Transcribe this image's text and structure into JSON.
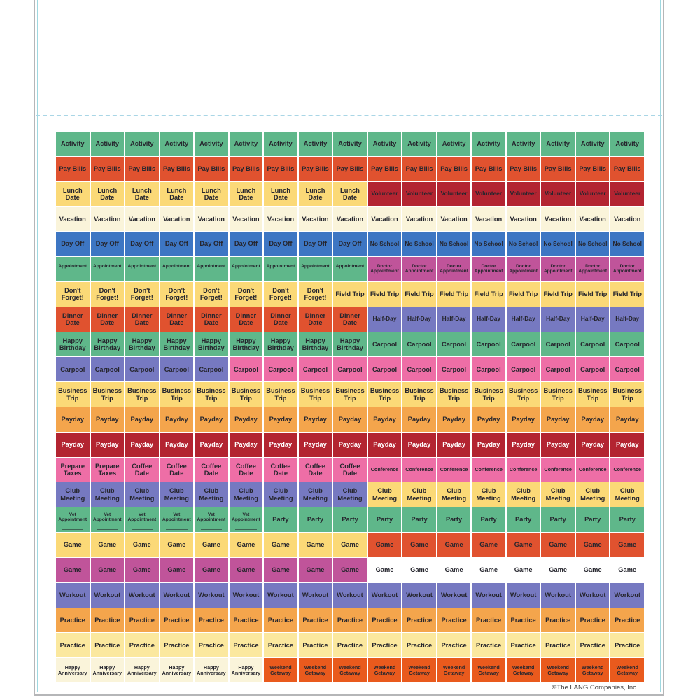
{
  "footer": {
    "copyright": "©The LANG Companies, Inc."
  },
  "palette": {
    "green": "#5fb78a",
    "red_orange": "#e0522f",
    "deep_orange": "#e95a1d",
    "yellow": "#fbd977",
    "pale_yellow": "#fbe89e",
    "cream": "#faf4da",
    "blue": "#3d76c3",
    "dark_red": "#b32431",
    "magenta": "#c0549a",
    "purple": "#7679c1",
    "pink": "#ee6ea6",
    "orange": "#f4a54c",
    "white": "#ffffff",
    "text_dark": "#26262e",
    "text_white": "#ffffff",
    "die_cut": "#9fd8e0",
    "border_gray": "#b5b6b8",
    "dash_line": "#a9d6e6"
  },
  "sheet": {
    "columns": 17,
    "rows": [
      {
        "segments": [
          {
            "label": "Activity",
            "color": "green",
            "count": 17,
            "size": "lg"
          }
        ]
      },
      {
        "segments": [
          {
            "label": "Pay Bills",
            "color": "red_orange",
            "count": 17,
            "size": "lg"
          }
        ]
      },
      {
        "segments": [
          {
            "label": "Lunch Date",
            "color": "yellow",
            "count": 9,
            "size": "lg",
            "wrap": true
          },
          {
            "label": "Volunteer",
            "color": "dark_red",
            "count": 8,
            "size": "md"
          }
        ]
      },
      {
        "segments": [
          {
            "label": "Vacation",
            "color": "cream",
            "count": 17,
            "size": "lg"
          }
        ]
      },
      {
        "segments": [
          {
            "label": "Day Off",
            "color": "blue",
            "count": 9,
            "size": "lg"
          },
          {
            "label": "No School",
            "color": "blue",
            "count": 8,
            "size": "md"
          }
        ]
      },
      {
        "segments": [
          {
            "label": "Appointment",
            "color": "green",
            "count": 9,
            "size": "xs",
            "underline": true
          },
          {
            "label": "Doctor Appointment",
            "color": "magenta",
            "count": 8,
            "size": "xs",
            "wrap": true
          }
        ]
      },
      {
        "segments": [
          {
            "label": "Don't Forget!",
            "color": "yellow",
            "count": 8,
            "size": "lg",
            "wrap": true
          },
          {
            "label": "Field Trip",
            "color": "yellow",
            "count": 9,
            "size": "lg",
            "wrap": true
          }
        ]
      },
      {
        "segments": [
          {
            "label": "Dinner Date",
            "color": "red_orange",
            "count": 9,
            "size": "lg",
            "wrap": true
          },
          {
            "label": "Half-Day",
            "color": "purple",
            "count": 8,
            "size": "md"
          }
        ]
      },
      {
        "segments": [
          {
            "label": "Happy Birthday",
            "color": "green",
            "count": 9,
            "size": "lg",
            "wrap": true
          },
          {
            "label": "Carpool",
            "color": "green",
            "count": 8,
            "size": "lg"
          }
        ]
      },
      {
        "segments": [
          {
            "label": "Carpool",
            "color": "purple",
            "count": 5,
            "size": "lg"
          },
          {
            "label": "Carpool",
            "color": "pink",
            "count": 12,
            "size": "lg"
          }
        ]
      },
      {
        "segments": [
          {
            "label": "Business Trip",
            "color": "yellow",
            "count": 17,
            "size": "lg",
            "wrap": true
          }
        ]
      },
      {
        "segments": [
          {
            "label": "Payday",
            "color": "orange",
            "count": 17,
            "size": "lg"
          }
        ]
      },
      {
        "segments": [
          {
            "label": "Payday",
            "color": "dark_red",
            "count": 17,
            "size": "lg",
            "text": "white"
          }
        ]
      },
      {
        "segments": [
          {
            "label": "Prepare Taxes",
            "color": "pink",
            "count": 2,
            "size": "lg",
            "wrap": true
          },
          {
            "label": "Coffee Date",
            "color": "pink",
            "count": 7,
            "size": "lg",
            "wrap": true
          },
          {
            "label": "Conference",
            "color": "pink",
            "count": 8,
            "size": "sm"
          }
        ]
      },
      {
        "segments": [
          {
            "label": "Club Meeting",
            "color": "purple",
            "count": 9,
            "size": "lg",
            "wrap": true
          },
          {
            "label": "Club Meeting",
            "color": "yellow",
            "count": 8,
            "size": "lg",
            "wrap": true
          }
        ]
      },
      {
        "segments": [
          {
            "label": "Vet Appointment",
            "color": "green",
            "count": 6,
            "size": "xs",
            "wrap": true,
            "underline": true
          },
          {
            "label": "Party",
            "color": "green",
            "count": 11,
            "size": "lg"
          }
        ]
      },
      {
        "segments": [
          {
            "label": "Game",
            "color": "yellow",
            "count": 9,
            "size": "lg"
          },
          {
            "label": "Game",
            "color": "red_orange",
            "count": 8,
            "size": "lg"
          }
        ]
      },
      {
        "segments": [
          {
            "label": "Game",
            "color": "magenta",
            "count": 9,
            "size": "lg"
          },
          {
            "label": "Game",
            "color": "white",
            "count": 8,
            "size": "lg"
          }
        ]
      },
      {
        "segments": [
          {
            "label": "Workout",
            "color": "purple",
            "count": 17,
            "size": "lg"
          }
        ]
      },
      {
        "segments": [
          {
            "label": "Practice",
            "color": "orange",
            "count": 17,
            "size": "lg"
          }
        ]
      },
      {
        "segments": [
          {
            "label": "Practice",
            "color": "pale_yellow",
            "count": 17,
            "size": "lg"
          }
        ]
      },
      {
        "segments": [
          {
            "label": "Happy Anniversary",
            "color": "cream",
            "count": 6,
            "size": "sm",
            "wrap": true
          },
          {
            "label": "Weekend Getaway",
            "color": "deep_orange",
            "count": 11,
            "size": "sm",
            "wrap": true
          }
        ]
      }
    ]
  }
}
